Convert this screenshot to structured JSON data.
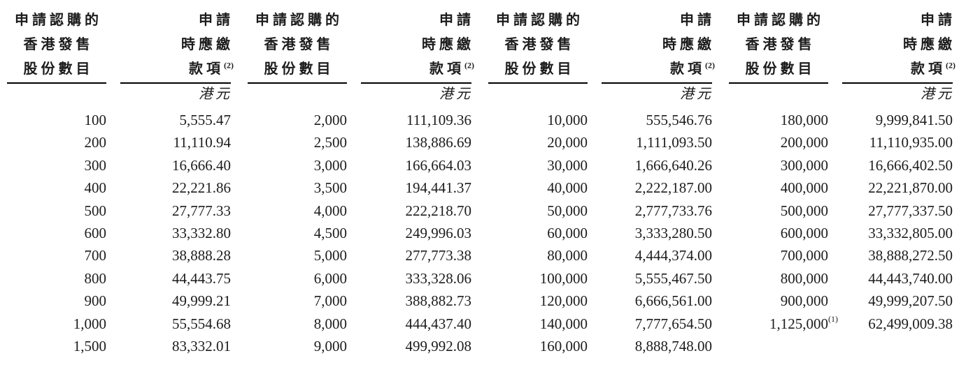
{
  "page": {
    "background_color": "#ffffff",
    "text_color": "#1c1c1c",
    "rule_color": "#000000"
  },
  "table": {
    "header": {
      "shares_lines": [
        "申請認購的",
        "香港發售",
        "股份數目"
      ],
      "amount_lines": [
        "申請",
        "時應繳",
        "款項"
      ],
      "amount_footnote_sup": "(2)",
      "currency_label": "港元"
    },
    "pairs": [
      {
        "rows": [
          {
            "shares": "100",
            "amount": "5,555.47"
          },
          {
            "shares": "200",
            "amount": "11,110.94"
          },
          {
            "shares": "300",
            "amount": "16,666.40"
          },
          {
            "shares": "400",
            "amount": "22,221.86"
          },
          {
            "shares": "500",
            "amount": "27,777.33"
          },
          {
            "shares": "600",
            "amount": "33,332.80"
          },
          {
            "shares": "700",
            "amount": "38,888.28"
          },
          {
            "shares": "800",
            "amount": "44,443.75"
          },
          {
            "shares": "900",
            "amount": "49,999.21"
          },
          {
            "shares": "1,000",
            "amount": "55,554.68"
          },
          {
            "shares": "1,500",
            "amount": "83,332.01"
          }
        ]
      },
      {
        "rows": [
          {
            "shares": "2,000",
            "amount": "111,109.36"
          },
          {
            "shares": "2,500",
            "amount": "138,886.69"
          },
          {
            "shares": "3,000",
            "amount": "166,664.03"
          },
          {
            "shares": "3,500",
            "amount": "194,441.37"
          },
          {
            "shares": "4,000",
            "amount": "222,218.70"
          },
          {
            "shares": "4,500",
            "amount": "249,996.03"
          },
          {
            "shares": "5,000",
            "amount": "277,773.38"
          },
          {
            "shares": "6,000",
            "amount": "333,328.06"
          },
          {
            "shares": "7,000",
            "amount": "388,882.73"
          },
          {
            "shares": "8,000",
            "amount": "444,437.40"
          },
          {
            "shares": "9,000",
            "amount": "499,992.08"
          }
        ]
      },
      {
        "rows": [
          {
            "shares": "10,000",
            "amount": "555,546.76"
          },
          {
            "shares": "20,000",
            "amount": "1,111,093.50"
          },
          {
            "shares": "30,000",
            "amount": "1,666,640.26"
          },
          {
            "shares": "40,000",
            "amount": "2,222,187.00"
          },
          {
            "shares": "50,000",
            "amount": "2,777,733.76"
          },
          {
            "shares": "60,000",
            "amount": "3,333,280.50"
          },
          {
            "shares": "80,000",
            "amount": "4,444,374.00"
          },
          {
            "shares": "100,000",
            "amount": "5,555,467.50"
          },
          {
            "shares": "120,000",
            "amount": "6,666,561.00"
          },
          {
            "shares": "140,000",
            "amount": "7,777,654.50"
          },
          {
            "shares": "160,000",
            "amount": "8,888,748.00"
          }
        ]
      },
      {
        "rows": [
          {
            "shares": "180,000",
            "amount": "9,999,841.50"
          },
          {
            "shares": "200,000",
            "amount": "11,110,935.00"
          },
          {
            "shares": "300,000",
            "amount": "16,666,402.50"
          },
          {
            "shares": "400,000",
            "amount": "22,221,870.00"
          },
          {
            "shares": "500,000",
            "amount": "27,777,337.50"
          },
          {
            "shares": "600,000",
            "amount": "33,332,805.00"
          },
          {
            "shares": "700,000",
            "amount": "38,888,272.50"
          },
          {
            "shares": "800,000",
            "amount": "44,443,740.00"
          },
          {
            "shares": "900,000",
            "amount": "49,999,207.50"
          },
          {
            "shares": "1,125,000",
            "shares_sup": "(1)",
            "amount": "62,499,009.38"
          }
        ]
      }
    ]
  }
}
